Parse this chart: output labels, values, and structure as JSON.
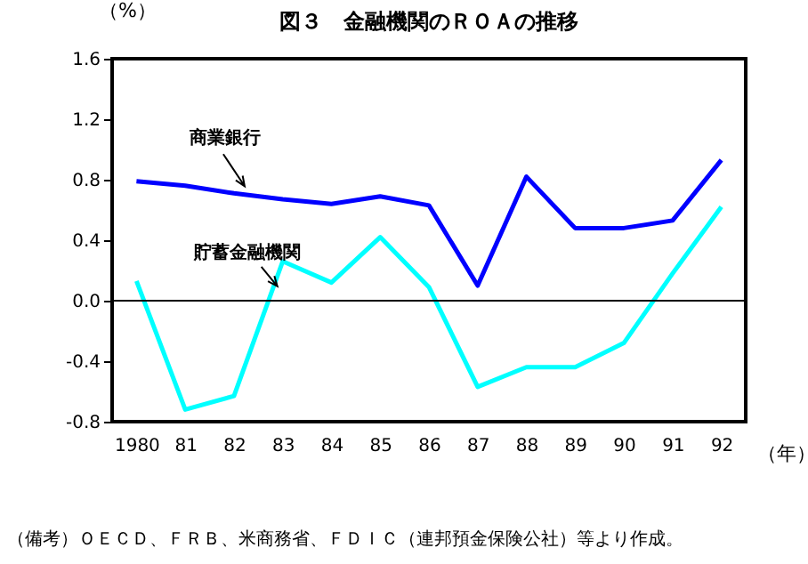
{
  "chart_data": {
    "type": "line",
    "title": "図３　金融機関のＲＯＡの推移",
    "ylabel": "（%）",
    "xlabel": "（年）",
    "categories": [
      "1980",
      "81",
      "82",
      "83",
      "84",
      "85",
      "86",
      "87",
      "88",
      "89",
      "90",
      "91",
      "92"
    ],
    "series": [
      {
        "color": "#0000ff",
        "values": [
          0.79,
          0.76,
          0.71,
          0.67,
          0.64,
          0.69,
          0.63,
          0.1,
          0.82,
          0.48,
          0.48,
          0.53,
          0.93
        ]
      },
      {
        "color": "#00ffff",
        "values": [
          0.13,
          -0.72,
          -0.63,
          0.26,
          0.12,
          0.42,
          0.09,
          -0.57,
          -0.44,
          -0.44,
          -0.28,
          0.18,
          0.62
        ]
      }
    ],
    "ylim": [
      -0.8,
      1.6
    ],
    "yticks": [
      {
        "value": -0.8,
        "label": "-0.8"
      },
      {
        "value": -0.4,
        "label": "-0.4"
      },
      {
        "value": 0,
        "label": "0.0"
      },
      {
        "value": 0.4,
        "label": "0.4"
      },
      {
        "value": 0.8,
        "label": "0.8"
      },
      {
        "value": 1.2,
        "label": "1.2"
      },
      {
        "value": 1.6,
        "label": "1.6"
      }
    ],
    "grid": false,
    "marker": "none",
    "line_style": "solid",
    "ref_lines": [
      {
        "axis": "y",
        "value": 0,
        "color": "#000000"
      }
    ],
    "annotations": [
      {
        "text": "商業銀行",
        "x": "82",
        "y": 0.71
      },
      {
        "text": "貯蓄金融機関",
        "x": "83",
        "y": 0.26
      },
      "（備考）ＯＥＣＤ、ＦＲＢ、米商務省、ＦＤＩＣ（連邦預金保険公社）等より作成。"
    ]
  }
}
